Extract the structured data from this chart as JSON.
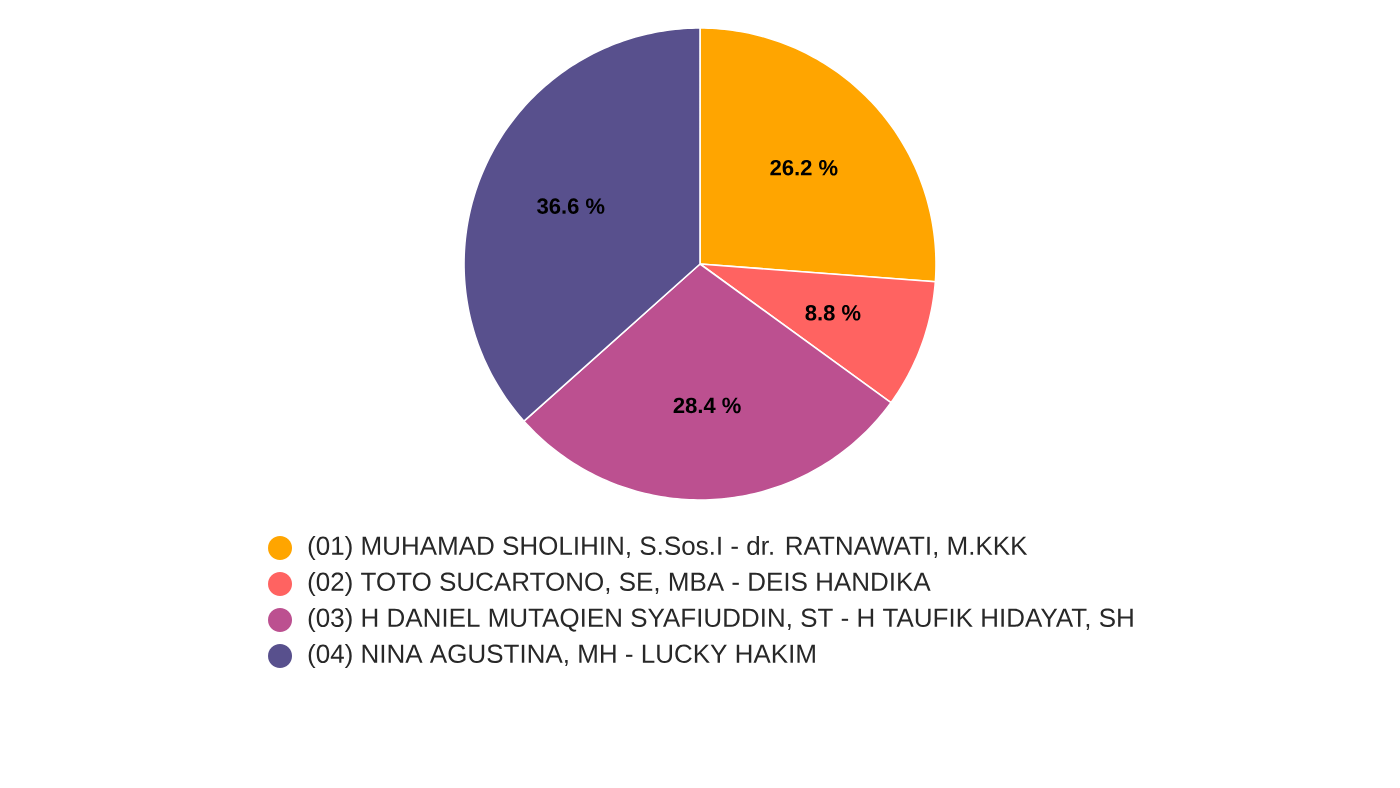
{
  "chart_data": {
    "type": "pie",
    "categories": [
      "(01) MUHAMAD SHOLIHIN, S.Sos.I - dr. RATNAWATI, M.KKK",
      "(02) TOTO SUCARTONO, SE, MBA - DEIS HANDIKA",
      "(03) H DANIEL MUTAQIEN SYAFIUDDIN, ST - H TAUFIK HIDAYAT, SH",
      "(04) NINA AGUSTINA, MH - LUCKY HAKIM"
    ],
    "values": [
      26.2,
      8.8,
      28.4,
      36.6
    ],
    "colors": [
      "#ffa500",
      "#ff6361",
      "#bc5090",
      "#58508d"
    ],
    "value_labels": [
      "26.2 %",
      "8.8 %",
      "28.4 %",
      "36.6 %"
    ],
    "legend": "bottom"
  }
}
